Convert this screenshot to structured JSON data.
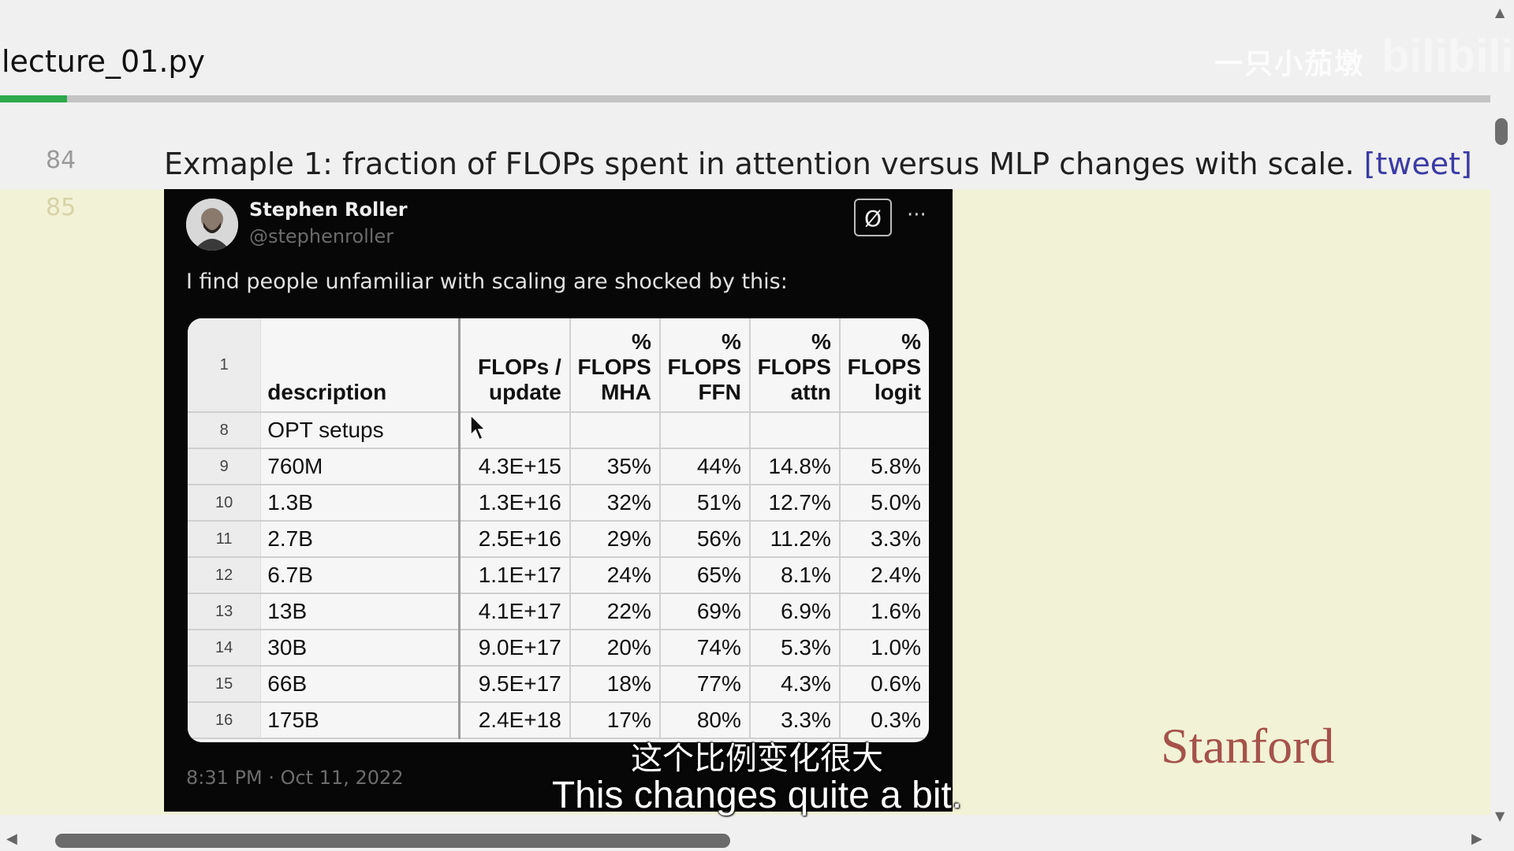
{
  "header": {
    "file_title": "lecture_01.py",
    "progress": 0.045,
    "watermark_text": "一只小茄墩",
    "watermark_logo": "bilibili"
  },
  "editor": {
    "lines": [
      {
        "number": "84",
        "text": "Exmaple 1: fraction of FLOPs spent in attention versus MLP changes with scale.",
        "link": "[tweet]"
      },
      {
        "number": "85"
      }
    ]
  },
  "tweet": {
    "author_name": "Stephen Roller",
    "author_handle": "@stephenroller",
    "body": "I find people unfamiliar with scaling are shocked by this:",
    "timestamp": "8:31 PM · Oct 11, 2022",
    "icons": [
      "avatar",
      "x-logo-icon",
      "more-icon"
    ]
  },
  "table": {
    "header_row_number": "1",
    "columns": [
      "description",
      "FLOPs / update",
      "% FLOPS MHA",
      "% FLOPS FFN",
      "% FLOPS attn",
      "% FLOPS logit"
    ],
    "rows": [
      {
        "n": "8",
        "cells": [
          "OPT  setups",
          "",
          "",
          "",
          "",
          ""
        ]
      },
      {
        "n": "9",
        "cells": [
          "760M",
          "4.3E+15",
          "35%",
          "44%",
          "14.8%",
          "5.8%"
        ]
      },
      {
        "n": "10",
        "cells": [
          "1.3B",
          "1.3E+16",
          "32%",
          "51%",
          "12.7%",
          "5.0%"
        ]
      },
      {
        "n": "11",
        "cells": [
          "2.7B",
          "2.5E+16",
          "29%",
          "56%",
          "11.2%",
          "3.3%"
        ]
      },
      {
        "n": "12",
        "cells": [
          "6.7B",
          "1.1E+17",
          "24%",
          "65%",
          "8.1%",
          "2.4%"
        ]
      },
      {
        "n": "13",
        "cells": [
          "13B",
          "4.1E+17",
          "22%",
          "69%",
          "6.9%",
          "1.6%"
        ]
      },
      {
        "n": "14",
        "cells": [
          "30B",
          "9.0E+17",
          "20%",
          "74%",
          "5.3%",
          "1.0%"
        ]
      },
      {
        "n": "15",
        "cells": [
          "66B",
          "9.5E+17",
          "18%",
          "77%",
          "4.3%",
          "0.6%"
        ]
      },
      {
        "n": "16",
        "cells": [
          "175B",
          "2.4E+18",
          "17%",
          "80%",
          "3.3%",
          "0.3%"
        ]
      }
    ]
  },
  "overlay": {
    "logo": "Stanford",
    "subtitle_cn": "这个比例变化很大",
    "subtitle_en": "This changes quite a bit."
  },
  "colors": {
    "progress": "#2ea84a",
    "link": "#3b3ba6",
    "highlight": "#f2f2d6",
    "stanford": "#8c1d1d"
  }
}
